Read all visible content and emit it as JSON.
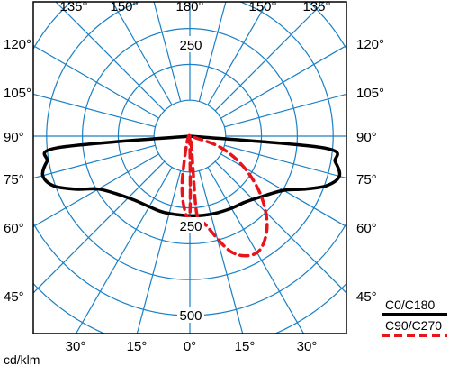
{
  "chart_data": {
    "type": "polar",
    "title": "",
    "unit_label": "cd/klm",
    "radial_ticks": [
      {
        "value": 250,
        "label": "250"
      },
      {
        "value": 500,
        "label": "500"
      }
    ],
    "angle_labels_top": [
      "135°",
      "150°",
      "180°",
      "150°",
      "135°"
    ],
    "angle_labels_left": [
      "120°",
      "105°",
      "90°",
      "75°",
      "60°",
      "45°"
    ],
    "angle_labels_right": [
      "120°",
      "105°",
      "90°",
      "75°",
      "60°",
      "45°"
    ],
    "angle_labels_bottom": [
      "30°",
      "15°",
      "0°",
      "15°",
      "30°"
    ],
    "series": [
      {
        "name": "C0/C180",
        "color": "#000000",
        "style": "solid",
        "points": [
          {
            "angle": 90,
            "value": 0
          },
          {
            "angle": 85,
            "value": 370
          },
          {
            "angle": 80,
            "value": 405
          },
          {
            "angle": 75,
            "value": 425
          },
          {
            "angle": 70,
            "value": 405
          },
          {
            "angle": 65,
            "value": 350
          },
          {
            "angle": 60,
            "value": 295
          },
          {
            "angle": 50,
            "value": 255
          },
          {
            "angle": 40,
            "value": 235
          },
          {
            "angle": 30,
            "value": 227
          },
          {
            "angle": 20,
            "value": 225
          },
          {
            "angle": 10,
            "value": 222
          },
          {
            "angle": 0,
            "value": 222
          },
          {
            "angle": -10,
            "value": 224
          },
          {
            "angle": -20,
            "value": 227
          },
          {
            "angle": -30,
            "value": 232
          },
          {
            "angle": -40,
            "value": 240
          },
          {
            "angle": -50,
            "value": 262
          },
          {
            "angle": -60,
            "value": 302
          },
          {
            "angle": -65,
            "value": 350
          },
          {
            "angle": -70,
            "value": 405
          },
          {
            "angle": -75,
            "value": 432
          },
          {
            "angle": -80,
            "value": 412
          },
          {
            "angle": -85,
            "value": 375
          },
          {
            "angle": -90,
            "value": 0
          }
        ]
      },
      {
        "name": "C90/C270",
        "color": "#e8141b",
        "style": "dashed",
        "points": [
          {
            "angle": 90,
            "value": 0
          },
          {
            "angle": 0,
            "value": 220
          },
          {
            "angle": 5,
            "value": 195
          },
          {
            "angle": 10,
            "value": 120
          },
          {
            "angle": 10,
            "value": 0
          },
          {
            "angle": -5,
            "value": 215
          },
          {
            "angle": -10,
            "value": 250
          },
          {
            "angle": -20,
            "value": 345
          },
          {
            "angle": -30,
            "value": 375
          },
          {
            "angle": -40,
            "value": 335
          },
          {
            "angle": -50,
            "value": 260
          },
          {
            "angle": -60,
            "value": 175
          },
          {
            "angle": -70,
            "value": 90
          },
          {
            "angle": -90,
            "value": 0
          }
        ]
      }
    ],
    "rmax": 640
  }
}
